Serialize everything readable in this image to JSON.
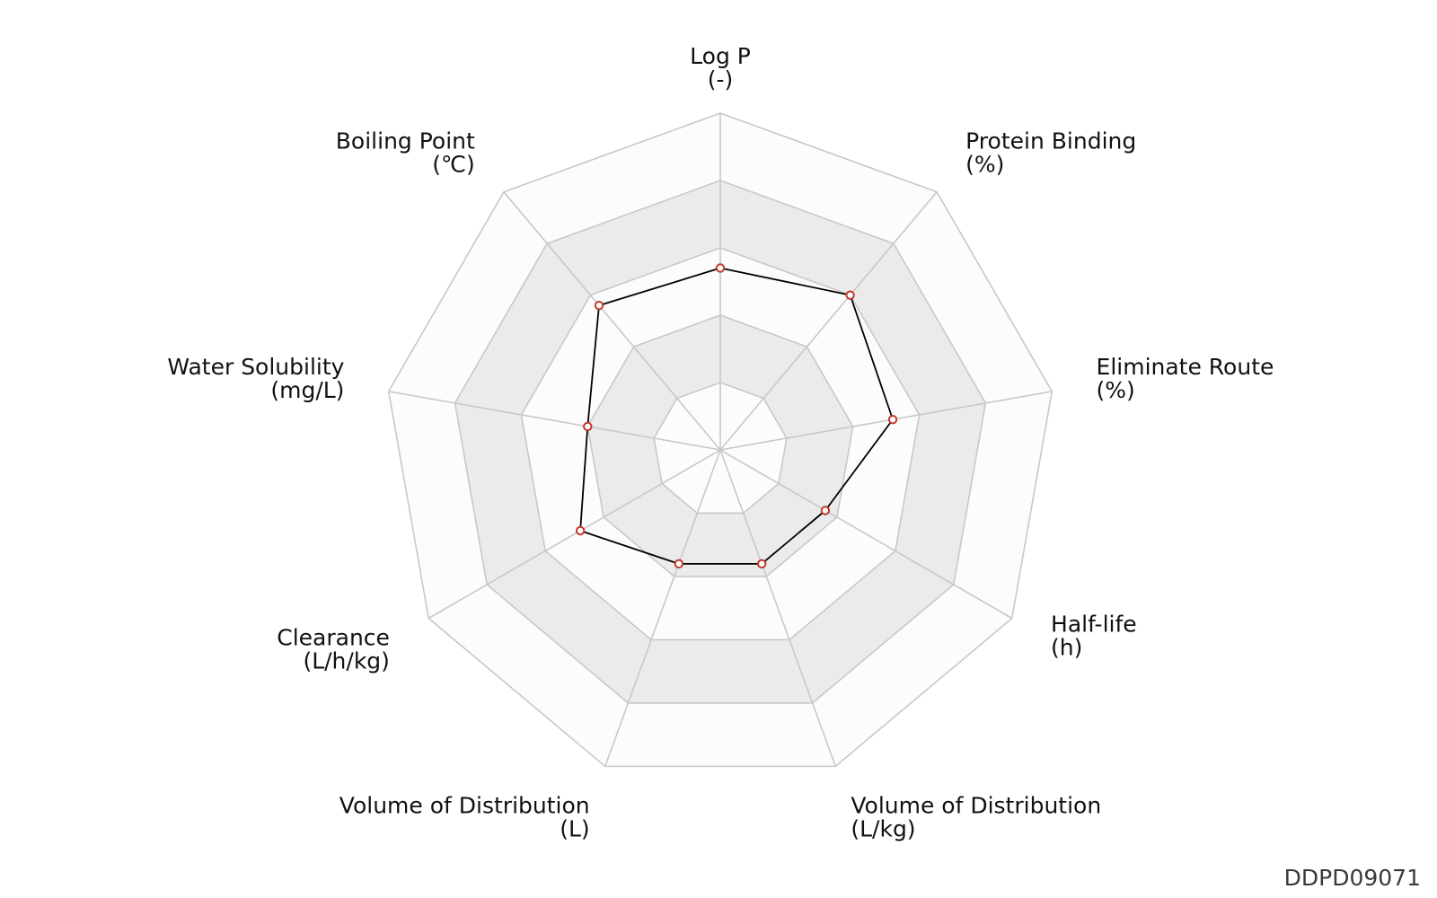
{
  "chart_data": {
    "type": "radar",
    "axes": [
      {
        "name": "Log P",
        "unit": "(-)"
      },
      {
        "name": "Protein Binding",
        "unit": "(%)"
      },
      {
        "name": "Eliminate Route",
        "unit": "(%)"
      },
      {
        "name": "Half-life",
        "unit": "(h)"
      },
      {
        "name": "Volume of Distribution",
        "unit": "(L/kg)"
      },
      {
        "name": "Volume of Distribution",
        "unit": "(L)"
      },
      {
        "name": "Clearance",
        "unit": "(L/h/kg)"
      },
      {
        "name": "Water Solubility",
        "unit": "(mg/L)"
      },
      {
        "name": "Boiling Point",
        "unit": "(℃)"
      }
    ],
    "rings": 5,
    "range": [
      0,
      1
    ],
    "values": [
      0.54,
      0.6,
      0.52,
      0.36,
      0.36,
      0.36,
      0.48,
      0.4,
      0.56
    ],
    "grid": true,
    "colors": {
      "line": "#000000",
      "marker_edge": "#c0392b",
      "marker_fill": "#ffffff",
      "band_dark": "#ebebeb",
      "band_light": "#fcfcfc",
      "grid_line": "#c8c8c8"
    }
  },
  "identifier": "DDPD09071"
}
